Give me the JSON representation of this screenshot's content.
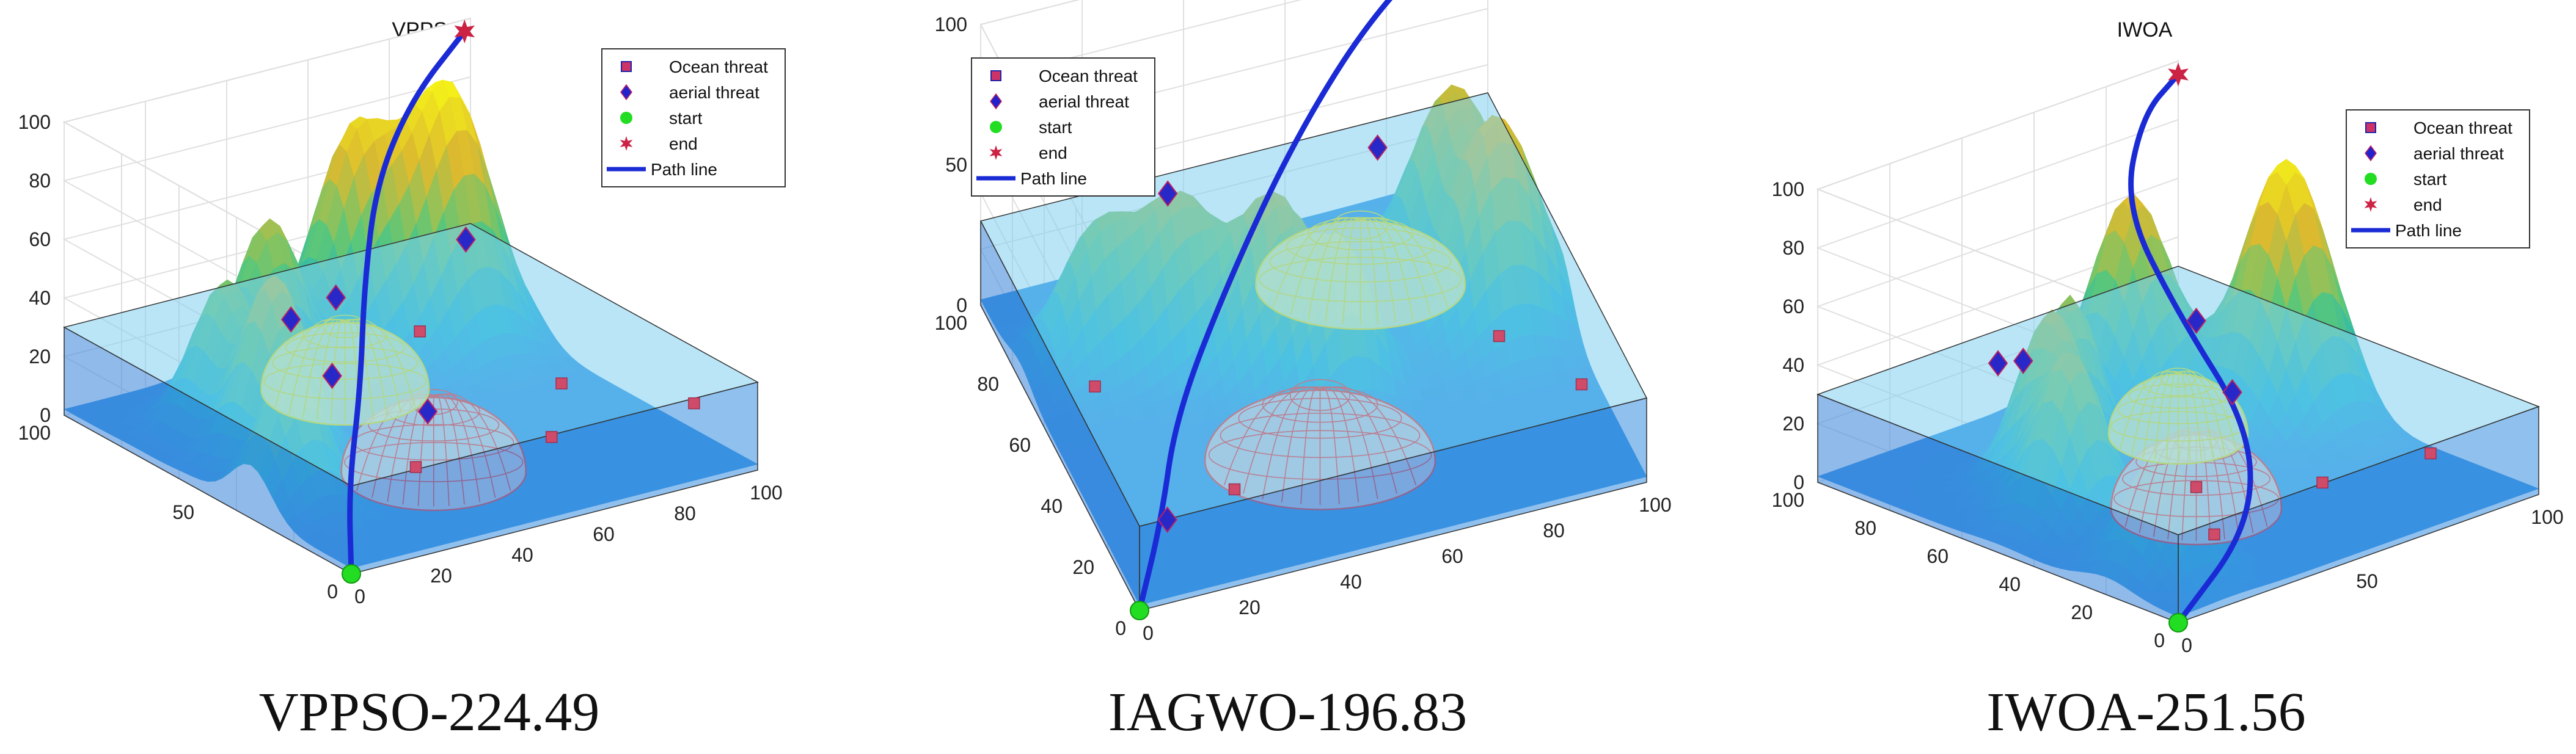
{
  "legend_entries": [
    {
      "label": "Ocean threat",
      "marker": "square",
      "color": "#cc3366"
    },
    {
      "label": "aerial threat",
      "marker": "diamond",
      "color": "#2222cc"
    },
    {
      "label": "start",
      "marker": "circle",
      "color": "#22dd22"
    },
    {
      "label": "end",
      "marker": "star",
      "color": "#cc2244"
    },
    {
      "label": "Path line",
      "marker": "line",
      "color": "#1a2bd6"
    }
  ],
  "colors": {
    "surface_low": "#3b7bd8",
    "surface_high": "#f7e12a",
    "water_box": "#7fd0f0",
    "red_dome": "#ff2020",
    "yellow_dome": "#f0e000",
    "path": "#1a2bd6"
  },
  "panels": [
    {
      "caption": "VPPSO-224.49",
      "chart_data": {
        "type": "scatter",
        "title": "VPPSO",
        "z_ticks": [
          "0",
          "20",
          "40",
          "60",
          "80",
          "100"
        ],
        "x_ticks": [
          "0",
          "20",
          "40",
          "60",
          "80",
          "100"
        ],
        "y_ticks": [
          "0",
          "50",
          "100"
        ],
        "zlim": [
          0,
          100
        ],
        "xlim": [
          0,
          100
        ],
        "ylim": [
          0,
          100
        ],
        "grid": true,
        "legend_position": "top-right",
        "mountains": [
          {
            "x": 10,
            "y": 35,
            "h": 45,
            "s": 7
          },
          {
            "x": 20,
            "y": 55,
            "h": 62,
            "s": 7
          },
          {
            "x": 22,
            "y": 75,
            "h": 48,
            "s": 7
          },
          {
            "x": 40,
            "y": 85,
            "h": 58,
            "s": 7
          },
          {
            "x": 65,
            "y": 92,
            "h": 72,
            "s": 8
          },
          {
            "x": 84,
            "y": 85,
            "h": 88,
            "s": 9
          }
        ],
        "domes": [
          {
            "x": 45,
            "y": 35,
            "r": 22,
            "color": "red"
          },
          {
            "x": 55,
            "y": 80,
            "r": 20,
            "color": "yellow"
          }
        ],
        "ocean_threats": [
          [
            30,
            20,
            15
          ],
          [
            62,
            18,
            15
          ],
          [
            80,
            40,
            15
          ],
          [
            72,
            78,
            15
          ],
          [
            90,
            8,
            22
          ]
        ],
        "aerial_threats": [
          [
            8,
            18,
            55
          ],
          [
            12,
            38,
            62
          ],
          [
            28,
            45,
            60
          ],
          [
            72,
            62,
            55
          ],
          [
            40,
            30,
            25
          ]
        ],
        "start": [
          0,
          0,
          0
        ],
        "end": [
          95,
          95,
          100
        ],
        "path": [
          [
            0,
            0,
            0
          ],
          [
            10,
            15,
            18
          ],
          [
            22,
            28,
            40
          ],
          [
            35,
            45,
            62
          ],
          [
            50,
            62,
            82
          ],
          [
            70,
            78,
            95
          ],
          [
            95,
            95,
            100
          ]
        ]
      }
    },
    {
      "caption": "IAGWO-196.83",
      "chart_data": {
        "type": "scatter",
        "title": "IAGWO",
        "z_ticks": [
          "0",
          "50",
          "100"
        ],
        "x_ticks": [
          "0",
          "20",
          "40",
          "60",
          "80",
          "100"
        ],
        "y_ticks": [
          "0",
          "20",
          "40",
          "60",
          "80",
          "100"
        ],
        "zlim": [
          0,
          100
        ],
        "xlim": [
          0,
          100
        ],
        "ylim": [
          0,
          100
        ],
        "grid": true,
        "legend_position": "top-left",
        "mountains": [
          {
            "x": 15,
            "y": 75,
            "h": 45,
            "s": 7
          },
          {
            "x": 30,
            "y": 70,
            "h": 52,
            "s": 7
          },
          {
            "x": 45,
            "y": 60,
            "h": 58,
            "s": 7
          },
          {
            "x": 55,
            "y": 48,
            "h": 48,
            "s": 6
          },
          {
            "x": 85,
            "y": 75,
            "h": 62,
            "s": 8
          },
          {
            "x": 88,
            "y": 55,
            "h": 70,
            "s": 8
          }
        ],
        "domes": [
          {
            "x": 45,
            "y": 30,
            "r": 22,
            "color": "red"
          },
          {
            "x": 68,
            "y": 78,
            "r": 20,
            "color": "yellow"
          }
        ],
        "ocean_threats": [
          [
            10,
            60,
            10
          ],
          [
            25,
            20,
            10
          ],
          [
            85,
            45,
            10
          ],
          [
            95,
            25,
            10
          ]
        ],
        "aerial_threats": [
          [
            8,
            8,
            20
          ],
          [
            30,
            78,
            50
          ],
          [
            72,
            80,
            45
          ]
        ],
        "start": [
          0,
          0,
          0
        ],
        "end": [
          95,
          95,
          100
        ],
        "path": [
          [
            0,
            0,
            0
          ],
          [
            8,
            12,
            15
          ],
          [
            15,
            25,
            35
          ],
          [
            30,
            40,
            60
          ],
          [
            50,
            60,
            82
          ],
          [
            72,
            80,
            95
          ],
          [
            95,
            95,
            100
          ]
        ]
      }
    },
    {
      "caption": "IWOA-251.56",
      "chart_data": {
        "type": "scatter",
        "title": "IWOA",
        "z_ticks": [
          "0",
          "20",
          "40",
          "60",
          "80",
          "100"
        ],
        "x_ticks": [
          "0",
          "50",
          "100"
        ],
        "y_ticks": [
          "0",
          "20",
          "40",
          "60",
          "80",
          "100"
        ],
        "zlim": [
          0,
          100
        ],
        "xlim": [
          0,
          100
        ],
        "ylim": [
          0,
          100
        ],
        "grid": true,
        "legend_position": "top-right",
        "mountains": [
          {
            "x": 15,
            "y": 20,
            "h": 40,
            "s": 7
          },
          {
            "x": 20,
            "y": 50,
            "h": 55,
            "s": 7
          },
          {
            "x": 30,
            "y": 65,
            "h": 58,
            "s": 7
          },
          {
            "x": 45,
            "y": 75,
            "h": 52,
            "s": 6
          },
          {
            "x": 72,
            "y": 85,
            "h": 72,
            "s": 8
          },
          {
            "x": 90,
            "y": 60,
            "h": 88,
            "s": 9
          }
        ],
        "domes": [
          {
            "x": 45,
            "y": 40,
            "r": 22,
            "color": "red"
          },
          {
            "x": 70,
            "y": 70,
            "r": 18,
            "color": "yellow"
          }
        ],
        "ocean_threats": [
          [
            25,
            15,
            12
          ],
          [
            40,
            35,
            12
          ],
          [
            60,
            20,
            12
          ],
          [
            80,
            10,
            18
          ]
        ],
        "aerial_threats": [
          [
            5,
            55,
            60
          ],
          [
            15,
            58,
            55
          ],
          [
            55,
            50,
            55
          ],
          [
            50,
            35,
            40
          ]
        ],
        "start": [
          0,
          0,
          0
        ],
        "end": [
          95,
          95,
          100
        ],
        "path": [
          [
            0,
            0,
            0
          ],
          [
            30,
            10,
            15
          ],
          [
            50,
            30,
            30
          ],
          [
            55,
            55,
            55
          ],
          [
            60,
            75,
            80
          ],
          [
            80,
            90,
            95
          ],
          [
            95,
            95,
            100
          ]
        ]
      }
    }
  ]
}
